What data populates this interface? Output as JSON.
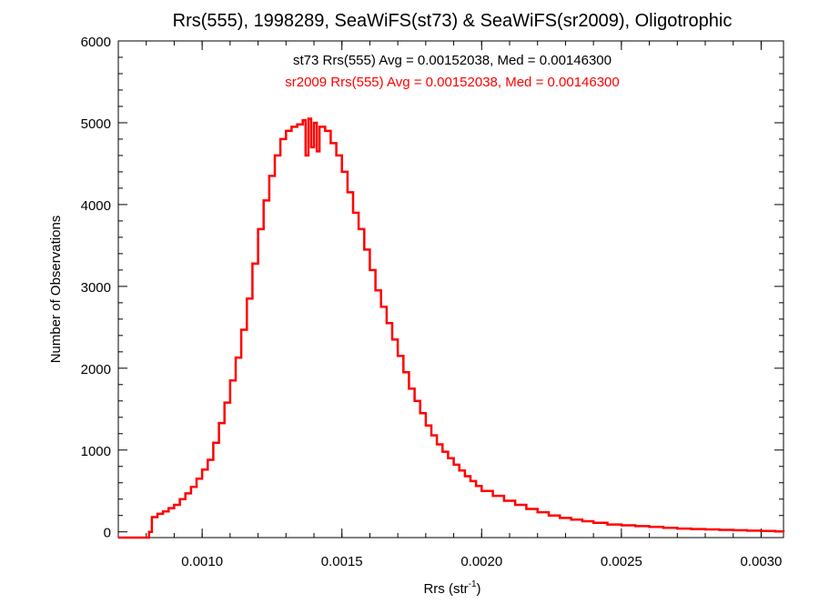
{
  "chart_data": {
    "type": "line",
    "title": "Rrs(555), 1998289, SeaWiFS(st73) & SeaWiFS(sr2009), Oligotrophic",
    "xlabel_main": "Rrs (str",
    "xlabel_sup": "-1",
    "xlabel_close": ")",
    "ylabel": "Number of Observations",
    "xlim": [
      0.0007,
      0.00308
    ],
    "ylim": [
      -70,
      6000
    ],
    "xticks": [
      {
        "value": 0.001,
        "label": "0.0010"
      },
      {
        "value": 0.0015,
        "label": "0.0015"
      },
      {
        "value": 0.002,
        "label": "0.0020"
      },
      {
        "value": 0.0025,
        "label": "0.0025"
      },
      {
        "value": 0.003,
        "label": "0.0030"
      }
    ],
    "yticks": [
      {
        "value": 0,
        "label": "0"
      },
      {
        "value": 1000,
        "label": "1000"
      },
      {
        "value": 2000,
        "label": "2000"
      },
      {
        "value": 3000,
        "label": "3000"
      },
      {
        "value": 4000,
        "label": "4000"
      },
      {
        "value": 5000,
        "label": "5000"
      },
      {
        "value": 6000,
        "label": "6000"
      }
    ],
    "annotations": [
      {
        "text": "st73 Rrs(555) Avg = 0.00152038, Med = 0.00146300",
        "color": "#000000"
      },
      {
        "text": "sr2009 Rrs(555) Avg = 0.00152038, Med = 0.00146300",
        "color": "#ff0000"
      }
    ],
    "series": [
      {
        "color": "#ff0000",
        "style": "step",
        "x": [
          0.0007,
          0.0008,
          0.00081,
          0.00082,
          0.00084,
          0.00086,
          0.00088,
          0.0009,
          0.00092,
          0.00094,
          0.00096,
          0.00098,
          0.001,
          0.00102,
          0.00104,
          0.00106,
          0.00108,
          0.0011,
          0.00112,
          0.00114,
          0.00116,
          0.00118,
          0.0012,
          0.00122,
          0.00124,
          0.00126,
          0.00128,
          0.0013,
          0.00132,
          0.00134,
          0.00136,
          0.00137,
          0.00138,
          0.00139,
          0.0014,
          0.00141,
          0.00142,
          0.00144,
          0.00146,
          0.00148,
          0.0015,
          0.00152,
          0.00154,
          0.00156,
          0.00158,
          0.0016,
          0.00162,
          0.00164,
          0.00166,
          0.00168,
          0.0017,
          0.00172,
          0.00174,
          0.00176,
          0.00178,
          0.0018,
          0.00182,
          0.00184,
          0.00186,
          0.00188,
          0.0019,
          0.00192,
          0.00194,
          0.00196,
          0.00198,
          0.002,
          0.00204,
          0.00208,
          0.00212,
          0.00216,
          0.0022,
          0.00224,
          0.00228,
          0.00232,
          0.00236,
          0.0024,
          0.00245,
          0.0025,
          0.00255,
          0.0026,
          0.00265,
          0.0027,
          0.00275,
          0.0028,
          0.00285,
          0.0029,
          0.00295,
          0.003,
          0.00305,
          0.00308
        ],
        "y": [
          -70,
          -70,
          0,
          180,
          220,
          250,
          290,
          330,
          400,
          470,
          550,
          650,
          760,
          880,
          1090,
          1330,
          1580,
          1850,
          2130,
          2470,
          2850,
          3280,
          3700,
          4050,
          4350,
          4600,
          4800,
          4900,
          4950,
          4980,
          5030,
          4600,
          5050,
          4700,
          5000,
          4650,
          4950,
          4900,
          4750,
          4600,
          4400,
          4150,
          3900,
          3700,
          3450,
          3200,
          2950,
          2750,
          2550,
          2350,
          2150,
          1950,
          1750,
          1600,
          1450,
          1300,
          1180,
          1070,
          980,
          900,
          820,
          750,
          680,
          620,
          560,
          500,
          440,
          380,
          330,
          280,
          240,
          200,
          170,
          150,
          130,
          110,
          90,
          80,
          70,
          60,
          50,
          40,
          35,
          30,
          25,
          20,
          15,
          10,
          5,
          0
        ]
      }
    ]
  }
}
